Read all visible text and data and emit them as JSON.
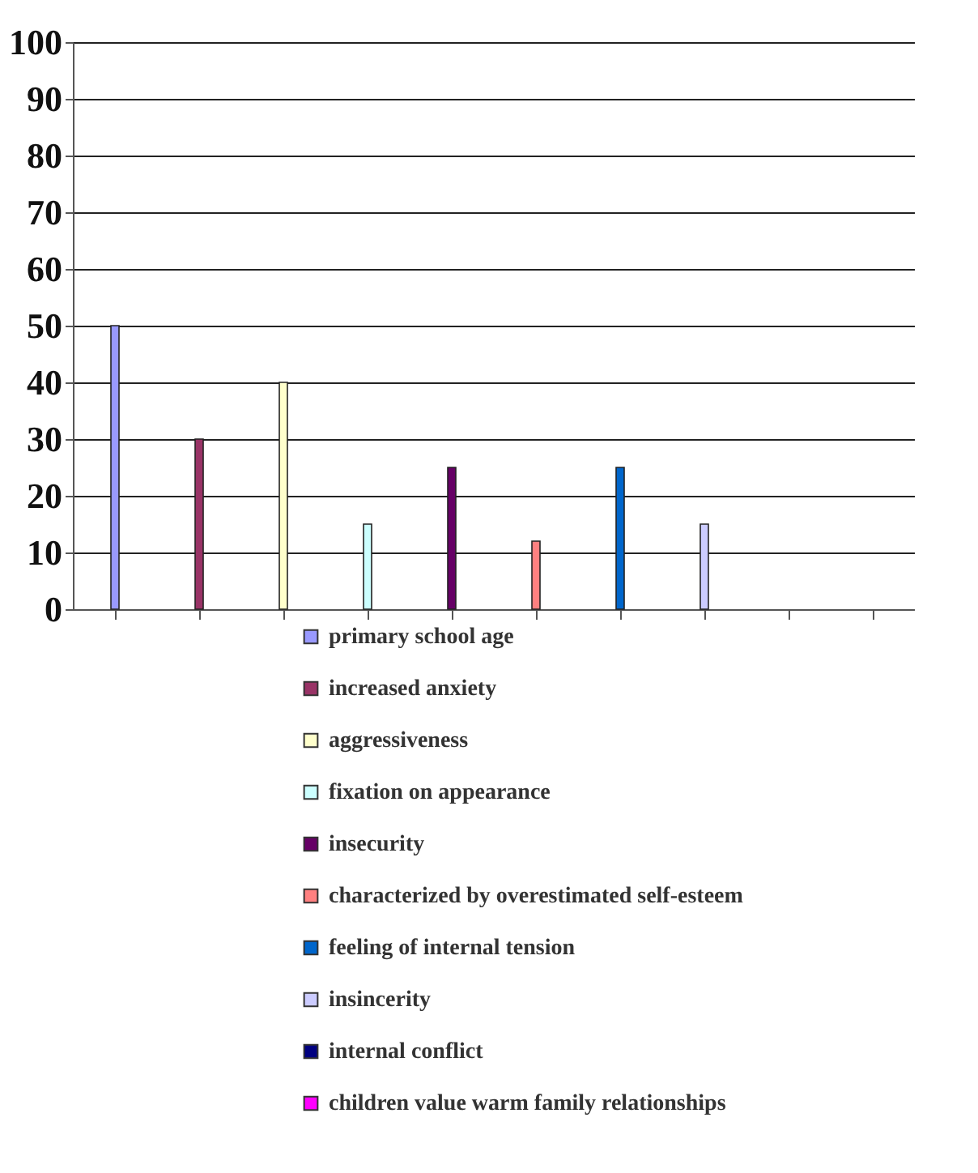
{
  "chart_data": {
    "type": "bar",
    "categories": [
      null
    ],
    "series": [
      {
        "name": "primary school age",
        "color": "#9999ff",
        "values": [
          50
        ]
      },
      {
        "name": "increased anxiety",
        "color": "#993366",
        "values": [
          30
        ]
      },
      {
        "name": "aggressiveness",
        "color": "#ffffcc",
        "values": [
          40
        ]
      },
      {
        "name": "fixation on appearance",
        "color": "#ccffff",
        "values": [
          15
        ]
      },
      {
        "name": "insecurity",
        "color": "#660066",
        "values": [
          25
        ]
      },
      {
        "name": "characterized by overestimated self-esteem",
        "color": "#ff8080",
        "values": [
          12
        ]
      },
      {
        "name": "feeling of internal tension",
        "color": "#0066cc",
        "values": [
          25
        ]
      },
      {
        "name": "insincerity",
        "color": "#ccccff",
        "values": [
          15
        ]
      },
      {
        "name": "internal conflict",
        "color": "#000080",
        "values": [
          null
        ]
      },
      {
        "name": "children value warm family relationships",
        "color": "#ff00ff",
        "values": [
          null
        ]
      }
    ],
    "ylim": [
      0,
      100
    ],
    "yticks": [
      0,
      10,
      20,
      30,
      40,
      50,
      60,
      70,
      80,
      90,
      100
    ],
    "grid": "y",
    "legend": "bottom"
  }
}
